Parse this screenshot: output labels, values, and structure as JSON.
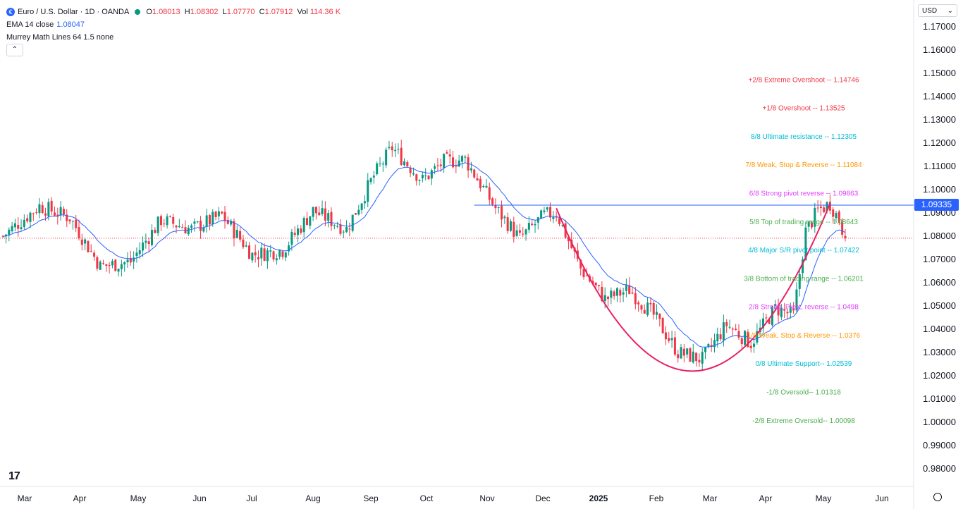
{
  "header": {
    "symbol_icon": "euro-flag-icon",
    "title": "Euro / U.S. Dollar · 1D · OANDA",
    "status_icon": "market-open-dot-icon",
    "o_label": "O",
    "o_value": "1.08013",
    "h_label": "H",
    "h_value": "1.08302",
    "l_label": "L",
    "l_value": "1.07770",
    "c_label": "C",
    "c_value": "1.07912",
    "vol_label": "Vol",
    "vol_value": "114.36 K"
  },
  "indicators": {
    "ema_label": "EMA 14 close",
    "ema_value": "1.08047",
    "murrey_label": "Murrey Math Lines 64 1.5 none",
    "collapse_icon": "chevron-up-icon"
  },
  "currency_selector": {
    "label": "USD",
    "icon": "chevron-down-icon"
  },
  "price_badge": "1.09335",
  "logo_text": "17",
  "colors": {
    "up": "#089981",
    "down": "#f23645",
    "ema": "#2962ff",
    "cup": "#e91e63",
    "hline": "#2962ff"
  },
  "chart_data": {
    "type": "candlestick",
    "title": "Euro / U.S. Dollar · 1D · OANDA",
    "ylim": [
      0.975,
      1.175
    ],
    "y_ticks": [
      "1.17000",
      "1.16000",
      "1.15000",
      "1.14000",
      "1.13000",
      "1.12000",
      "1.11000",
      "1.10000",
      "1.09000",
      "1.08000",
      "1.07000",
      "1.06000",
      "1.05000",
      "1.04000",
      "1.03000",
      "1.02000",
      "1.01000",
      "1.00000",
      "0.99000",
      "0.98000"
    ],
    "x_ticks": [
      "Mar",
      "Apr",
      "May",
      "Jun",
      "Jul",
      "Aug",
      "Sep",
      "Oct",
      "Nov",
      "Dec",
      "2025",
      "Feb",
      "Mar",
      "Apr",
      "May",
      "Jun"
    ],
    "bars_total": 300,
    "bars_data": 270,
    "price_path": [
      [
        0,
        1.08
      ],
      [
        12,
        1.093
      ],
      [
        22,
        1.088
      ],
      [
        32,
        1.067
      ],
      [
        42,
        1.069
      ],
      [
        52,
        1.087
      ],
      [
        62,
        1.083
      ],
      [
        72,
        1.089
      ],
      [
        82,
        1.072
      ],
      [
        92,
        1.074
      ],
      [
        102,
        1.091
      ],
      [
        113,
        1.083
      ],
      [
        122,
        1.106
      ],
      [
        128,
        1.118
      ],
      [
        138,
        1.104
      ],
      [
        145,
        1.112
      ],
      [
        152,
        1.113
      ],
      [
        162,
        1.092
      ],
      [
        170,
        1.079
      ],
      [
        178,
        1.089
      ],
      [
        182,
        1.09
      ],
      [
        190,
        1.066
      ],
      [
        198,
        1.053
      ],
      [
        206,
        1.057
      ],
      [
        214,
        1.046
      ],
      [
        222,
        1.03
      ],
      [
        230,
        1.027
      ],
      [
        238,
        1.042
      ],
      [
        246,
        1.034
      ],
      [
        254,
        1.049
      ],
      [
        260,
        1.046
      ],
      [
        264,
        1.082
      ],
      [
        268,
        1.091
      ],
      [
        272,
        1.094
      ],
      [
        275,
        1.087
      ],
      [
        277,
        1.0791
      ]
    ],
    "ema_period": 14,
    "ema_last": 1.08047,
    "horizontal_line": {
      "value": 1.09335,
      "label": "1.09335"
    },
    "current_price_line": 1.07912,
    "cup_pattern": {
      "start_bar": 182,
      "bottom_bar": 227,
      "end_bar": 272,
      "start_value": 1.092,
      "bottom_value": 1.022,
      "end_value": 1.094
    },
    "murrey_lines": [
      {
        "label": "+2/8 Extreme Overshoot --  1.14746",
        "value": 1.14746,
        "color": "#f23645"
      },
      {
        "label": "+1/8 Overshoot --  1.13525",
        "value": 1.13525,
        "color": "#f23645"
      },
      {
        "label": "8/8 Ultimate resistance --  1.12305",
        "value": 1.12305,
        "color": "#00bcd4"
      },
      {
        "label": "7/8 Weak, Stop & Reverse --  1.11084",
        "value": 1.11084,
        "color": "#ff9800"
      },
      {
        "label": "6/8 Strong pivot reverse --  1.09863",
        "value": 1.09863,
        "color": "#e040fb"
      },
      {
        "label": "5/8 Top of trading range --  1.08643",
        "value": 1.08643,
        "color": "#4caf50"
      },
      {
        "label": "4/8 Major S/R pivot point --  1.07422",
        "value": 1.07422,
        "color": "#00bcd4"
      },
      {
        "label": "3/8 Bottom of trading range --  1.06201",
        "value": 1.06201,
        "color": "#4caf50"
      },
      {
        "label": "2/8 Strong, Pivot, reverse --  1.0498",
        "value": 1.0498,
        "color": "#e040fb"
      },
      {
        "label": "1/8 Weak, Stop & Reverse --  1.0376",
        "value": 1.0376,
        "color": "#ff9800"
      },
      {
        "label": "0/8 Ultimate Support--  1.02539",
        "value": 1.02539,
        "color": "#00bcd4"
      },
      {
        "label": "-1/8 Oversold--  1.01318",
        "value": 1.01318,
        "color": "#4caf50"
      },
      {
        "label": "-2/8 Extreme Oversold--  1.00098",
        "value": 1.00098,
        "color": "#4caf50"
      }
    ]
  }
}
